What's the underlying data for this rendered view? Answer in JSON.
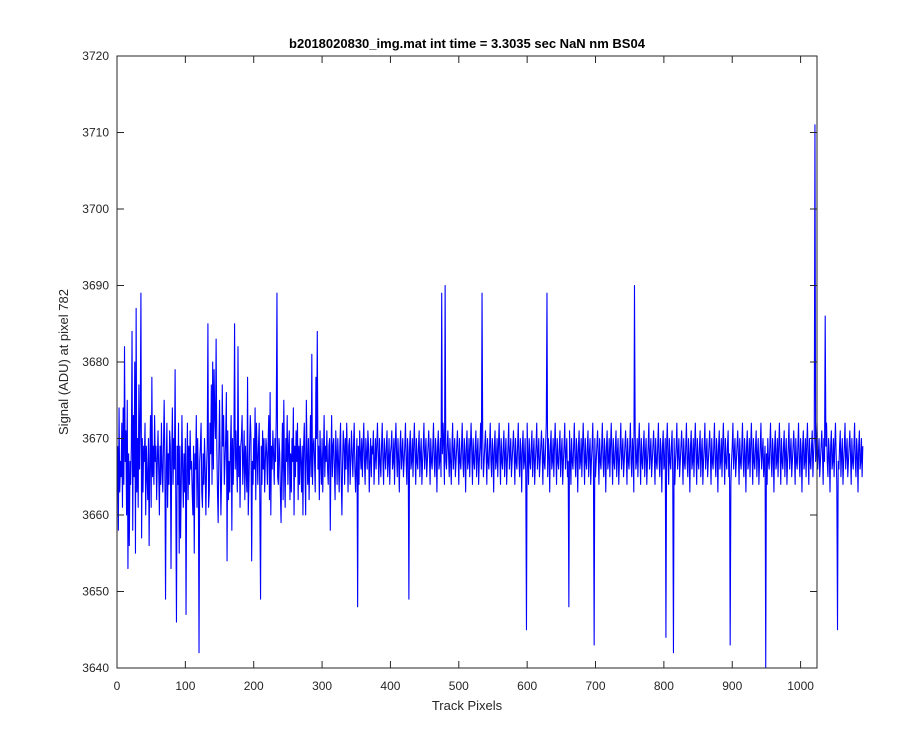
{
  "chart_data": {
    "type": "line",
    "title": "b2018020830_img.mat int time = 3.3035 sec  NaN nm BS04",
    "xlabel": "Track Pixels",
    "ylabel": "Signal (ADU) at pixel 782",
    "xlim": [
      0,
      1024
    ],
    "ylim": [
      3640,
      3720
    ],
    "x_ticks": [
      0,
      100,
      200,
      300,
      400,
      500,
      600,
      700,
      800,
      900,
      1000
    ],
    "y_ticks": [
      3640,
      3650,
      3660,
      3670,
      3680,
      3690,
      3700,
      3710,
      3720
    ],
    "grid": false,
    "line_color": "#0000ff",
    "series": [
      {
        "x_start": 1,
        "x_step": 1,
        "values": [
          3669,
          3658,
          3674,
          3663,
          3667,
          3665,
          3672,
          3661,
          3674,
          3664,
          3682,
          3667,
          3671,
          3660,
          3675,
          3653,
          3668,
          3656,
          3667,
          3664,
          3669,
          3684,
          3658,
          3673,
          3665,
          3680,
          3655,
          3687,
          3663,
          3670,
          3661,
          3677,
          3666,
          3672,
          3689,
          3657,
          3670,
          3663,
          3669,
          3667,
          3672,
          3660,
          3669,
          3665,
          3662,
          3670,
          3656,
          3667,
          3673,
          3661,
          3678,
          3665,
          3669,
          3664,
          3673,
          3667,
          3669,
          3662,
          3667,
          3671,
          3666,
          3660,
          3669,
          3664,
          3672,
          3666,
          3663,
          3669,
          3675,
          3667,
          3649,
          3666,
          3672,
          3661,
          3668,
          3664,
          3671,
          3669,
          3653,
          3667,
          3674,
          3664,
          3670,
          3666,
          3679,
          3662,
          3646,
          3669,
          3664,
          3672,
          3655,
          3669,
          3657,
          3664,
          3673,
          3666,
          3661,
          3668,
          3663,
          3670,
          3647,
          3666,
          3672,
          3662,
          3669,
          3664,
          3671,
          3666,
          3667,
          3663,
          3660,
          3669,
          3655,
          3668,
          3666,
          3673,
          3661,
          3670,
          3664,
          3642,
          3667,
          3669,
          3672,
          3663,
          3661,
          3668,
          3664,
          3670,
          3666,
          3660,
          3666,
          3669,
          3685,
          3661,
          3663,
          3672,
          3668,
          3677,
          3664,
          3680,
          3666,
          3679,
          3673,
          3670,
          3683,
          3669,
          3663,
          3659,
          3668,
          3675,
          3667,
          3660,
          3665,
          3677,
          3669,
          3673,
          3664,
          3667,
          3670,
          3676,
          3654,
          3671,
          3662,
          3667,
          3663,
          3669,
          3673,
          3658,
          3670,
          3664,
          3669,
          3685,
          3666,
          3671,
          3667,
          3663,
          3682,
          3665,
          3669,
          3661,
          3669,
          3670,
          3673,
          3664,
          3667,
          3671,
          3662,
          3669,
          3666,
          3663,
          3678,
          3660,
          3664,
          3669,
          3673,
          3670,
          3654,
          3667,
          3664,
          3670,
          3666,
          3674,
          3662,
          3672,
          3668,
          3664,
          3669,
          3672,
          3661,
          3649,
          3669,
          3664,
          3671,
          3666,
          3670,
          3663,
          3667,
          3670,
          3668,
          3664,
          3669,
          3673,
          3662,
          3676,
          3660,
          3669,
          3666,
          3671,
          3668,
          3664,
          3670,
          3667,
          3673,
          3689,
          3665,
          3664,
          3670,
          3668,
          3663,
          3659,
          3667,
          3672,
          3662,
          3675,
          3666,
          3661,
          3670,
          3667,
          3673,
          3664,
          3669,
          3671,
          3662,
          3668,
          3663,
          3670,
          3667,
          3674,
          3660,
          3669,
          3665,
          3671,
          3667,
          3672,
          3662,
          3669,
          3664,
          3670,
          3667,
          3663,
          3669,
          3660,
          3669,
          3672,
          3666,
          3660,
          3675,
          3668,
          3664,
          3670,
          3662,
          3667,
          3673,
          3665,
          3681,
          3664,
          3669,
          3670,
          3667,
          3663,
          3678,
          3670,
          3684,
          3666,
          3669,
          3662,
          3671,
          3667,
          3664,
          3670,
          3663,
          3668,
          3673,
          3665,
          3669,
          3667,
          3671,
          3666,
          3664,
          3669,
          3670,
          3658,
          3667,
          3673,
          3665,
          3669,
          3670,
          3666,
          3662,
          3671,
          3668,
          3664,
          3670,
          3667,
          3663,
          3669,
          3672,
          3665,
          3660,
          3667,
          3671,
          3669,
          3664,
          3670,
          3666,
          3672,
          3668,
          3663,
          3669,
          3670,
          3664,
          3667,
          3671,
          3668,
          3665,
          3669,
          3672,
          3666,
          3663,
          3667,
          3670,
          3648,
          3669,
          3664,
          3671,
          3668,
          3666,
          3670,
          3665,
          3669,
          3672,
          3667,
          3664,
          3670,
          3668,
          3666,
          3671,
          3669,
          3663,
          3667,
          3670,
          3665,
          3669,
          3668,
          3671,
          3664,
          3667,
          3670,
          3666,
          3669,
          3672,
          3668,
          3664,
          3670,
          3667,
          3665,
          3669,
          3672,
          3667,
          3664,
          3670,
          3668,
          3666,
          3669,
          3671,
          3665,
          3667,
          3670,
          3664,
          3668,
          3669,
          3671,
          3666,
          3667,
          3670,
          3664,
          3669,
          3672,
          3668,
          3665,
          3670,
          3667,
          3663,
          3669,
          3671,
          3666,
          3668,
          3670,
          3665,
          3667,
          3669,
          3672,
          3667,
          3664,
          3670,
          3668,
          3649,
          3669,
          3671,
          3666,
          3667,
          3670,
          3665,
          3669,
          3672,
          3668,
          3664,
          3670,
          3667,
          3666,
          3669,
          3671,
          3665,
          3668,
          3670,
          3664,
          3667,
          3669,
          3672,
          3666,
          3668,
          3670,
          3665,
          3667,
          3669,
          3671,
          3668,
          3664,
          3670,
          3667,
          3666,
          3669,
          3672,
          3667,
          3665,
          3670,
          3668,
          3663,
          3669,
          3671,
          3666,
          3667,
          3670,
          3665,
          3689,
          3668,
          3672,
          3669,
          3664,
          3690,
          3667,
          3666,
          3669,
          3671,
          3668,
          3665,
          3670,
          3667,
          3664,
          3669,
          3672,
          3666,
          3668,
          3670,
          3665,
          3667,
          3669,
          3671,
          3668,
          3664,
          3670,
          3667,
          3666,
          3669,
          3672,
          3667,
          3665,
          3670,
          3668,
          3663,
          3669,
          3671,
          3666,
          3667,
          3670,
          3665,
          3669,
          3672,
          3668,
          3664,
          3670,
          3667,
          3666,
          3669,
          3671,
          3665,
          3668,
          3670,
          3664,
          3667,
          3669,
          3672,
          3666,
          3689,
          3670,
          3665,
          3667,
          3669,
          3671,
          3668,
          3664,
          3670,
          3667,
          3666,
          3669,
          3672,
          3667,
          3665,
          3670,
          3668,
          3663,
          3669,
          3671,
          3666,
          3667,
          3670,
          3665,
          3669,
          3672,
          3668,
          3664,
          3670,
          3667,
          3666,
          3669,
          3671,
          3665,
          3668,
          3670,
          3664,
          3667,
          3669,
          3672,
          3666,
          3668,
          3670,
          3665,
          3667,
          3669,
          3671,
          3668,
          3664,
          3670,
          3667,
          3666,
          3669,
          3672,
          3667,
          3665,
          3670,
          3668,
          3663,
          3669,
          3671,
          3666,
          3667,
          3670,
          3665,
          3645,
          3672,
          3668,
          3664,
          3670,
          3667,
          3666,
          3669,
          3671,
          3665,
          3668,
          3670,
          3664,
          3667,
          3669,
          3672,
          3666,
          3668,
          3670,
          3665,
          3667,
          3669,
          3671,
          3668,
          3664,
          3670,
          3667,
          3666,
          3669,
          3672,
          3689,
          3665,
          3670,
          3668,
          3663,
          3669,
          3671,
          3666,
          3667,
          3670,
          3665,
          3669,
          3672,
          3668,
          3664,
          3670,
          3667,
          3666,
          3669,
          3671,
          3665,
          3668,
          3670,
          3664,
          3667,
          3669,
          3672,
          3666,
          3668,
          3670,
          3665,
          3667,
          3648,
          3671,
          3668,
          3664,
          3670,
          3667,
          3666,
          3669,
          3672,
          3667,
          3665,
          3670,
          3668,
          3663,
          3669,
          3671,
          3666,
          3667,
          3670,
          3665,
          3669,
          3672,
          3668,
          3664,
          3670,
          3667,
          3666,
          3669,
          3671,
          3665,
          3668,
          3670,
          3664,
          3667,
          3669,
          3672,
          3666,
          3643,
          3670,
          3665,
          3667,
          3669,
          3671,
          3668,
          3664,
          3670,
          3667,
          3666,
          3669,
          3672,
          3667,
          3665,
          3670,
          3668,
          3663,
          3669,
          3671,
          3666,
          3667,
          3670,
          3665,
          3669,
          3672,
          3668,
          3664,
          3670,
          3667,
          3666,
          3669,
          3671,
          3665,
          3668,
          3670,
          3664,
          3667,
          3669,
          3672,
          3666,
          3668,
          3670,
          3665,
          3667,
          3669,
          3671,
          3668,
          3664,
          3670,
          3667,
          3666,
          3669,
          3672,
          3667,
          3665,
          3670,
          3668,
          3663,
          3690,
          3671,
          3666,
          3667,
          3670,
          3665,
          3669,
          3672,
          3668,
          3664,
          3670,
          3667,
          3666,
          3669,
          3671,
          3665,
          3668,
          3670,
          3664,
          3667,
          3669,
          3672,
          3666,
          3668,
          3670,
          3665,
          3667,
          3669,
          3671,
          3668,
          3664,
          3670,
          3667,
          3666,
          3669,
          3672,
          3667,
          3665,
          3670,
          3668,
          3663,
          3669,
          3671,
          3666,
          3667,
          3670,
          3644,
          3669,
          3672,
          3668,
          3664,
          3670,
          3667,
          3666,
          3669,
          3671,
          3665,
          3642,
          3670,
          3664,
          3667,
          3669,
          3672,
          3666,
          3668,
          3670,
          3665,
          3667,
          3669,
          3671,
          3668,
          3664,
          3670,
          3667,
          3666,
          3669,
          3672,
          3667,
          3665,
          3670,
          3668,
          3663,
          3669,
          3671,
          3666,
          3667,
          3670,
          3665,
          3669,
          3672,
          3668,
          3664,
          3670,
          3667,
          3666,
          3669,
          3671,
          3665,
          3668,
          3670,
          3664,
          3667,
          3669,
          3672,
          3666,
          3668,
          3670,
          3665,
          3667,
          3669,
          3671,
          3668,
          3664,
          3670,
          3667,
          3666,
          3669,
          3672,
          3667,
          3665,
          3670,
          3668,
          3663,
          3669,
          3671,
          3666,
          3667,
          3670,
          3665,
          3669,
          3672,
          3668,
          3664,
          3670,
          3667,
          3666,
          3669,
          3671,
          3665,
          3668,
          3643,
          3664,
          3667,
          3669,
          3672,
          3666,
          3668,
          3670,
          3665,
          3667,
          3669,
          3671,
          3668,
          3664,
          3670,
          3667,
          3666,
          3669,
          3672,
          3667,
          3665,
          3670,
          3668,
          3663,
          3669,
          3671,
          3666,
          3667,
          3670,
          3665,
          3669,
          3672,
          3668,
          3664,
          3670,
          3667,
          3666,
          3669,
          3671,
          3665,
          3668,
          3670,
          3664,
          3667,
          3669,
          3672,
          3666,
          3668,
          3670,
          3665,
          3667,
          3669,
          3640,
          3668,
          3664,
          3670,
          3667,
          3666,
          3669,
          3672,
          3667,
          3665,
          3670,
          3668,
          3663,
          3669,
          3671,
          3666,
          3667,
          3670,
          3665,
          3669,
          3672,
          3668,
          3664,
          3670,
          3667,
          3666,
          3669,
          3671,
          3665,
          3668,
          3670,
          3664,
          3667,
          3669,
          3672,
          3666,
          3668,
          3670,
          3665,
          3667,
          3669,
          3671,
          3668,
          3664,
          3670,
          3667,
          3666,
          3669,
          3672,
          3667,
          3665,
          3670,
          3668,
          3663,
          3669,
          3671,
          3666,
          3667,
          3670,
          3665,
          3669,
          3672,
          3668,
          3664,
          3670,
          3667,
          3666,
          3669,
          3671,
          3665,
          3668,
          3670,
          3711,
          3667,
          3669,
          3672,
          3666,
          3668,
          3670,
          3665,
          3667,
          3669,
          3671,
          3668,
          3664,
          3670,
          3667,
          3686,
          3669,
          3672,
          3667,
          3665,
          3670,
          3668,
          3663,
          3669,
          3671,
          3666,
          3667,
          3670,
          3665,
          3669,
          3672,
          3668,
          3664,
          3645,
          3667,
          3666,
          3669,
          3671,
          3665,
          3668,
          3670,
          3664,
          3667,
          3669,
          3672,
          3666,
          3668,
          3670,
          3665,
          3667,
          3669,
          3671,
          3668,
          3664,
          3670,
          3667,
          3666,
          3669,
          3672,
          3667,
          3665,
          3670,
          3668,
          3663,
          3669,
          3671,
          3666,
          3667,
          3670,
          3665,
          3669
        ]
      }
    ]
  }
}
